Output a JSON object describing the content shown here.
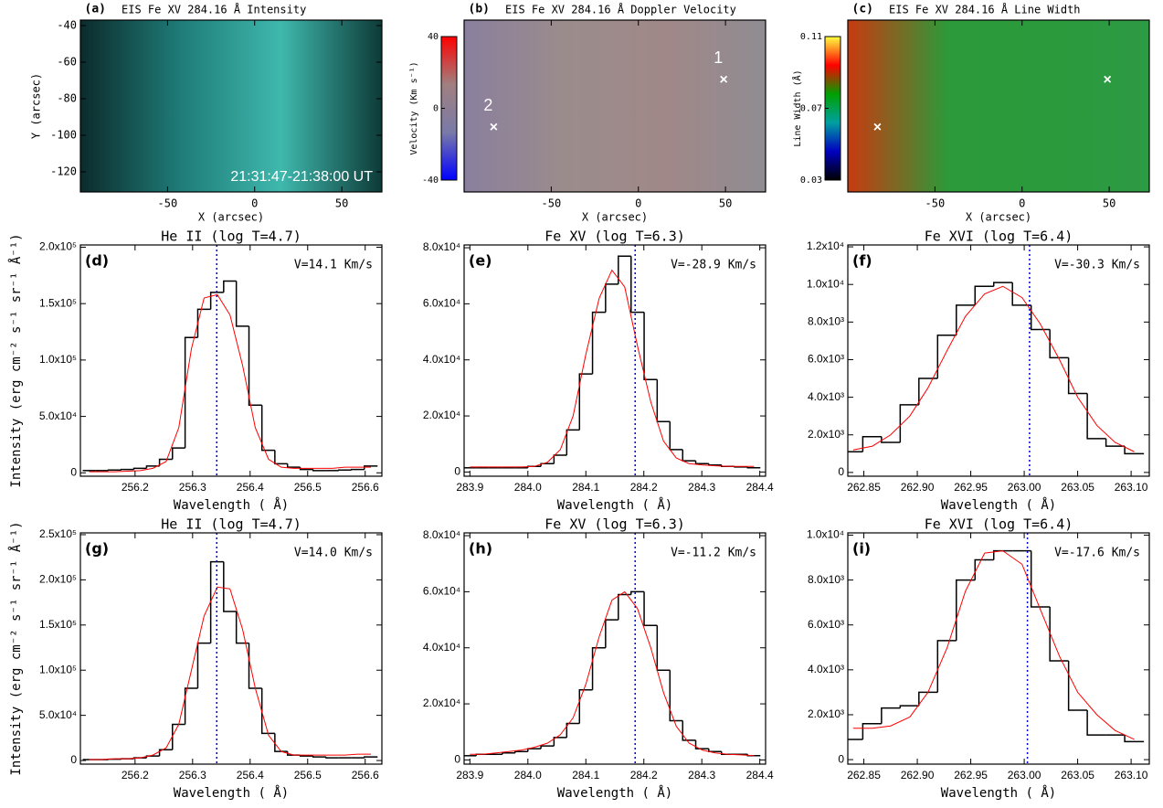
{
  "chart_data": [
    {
      "type": "image",
      "panel_label": "(a)",
      "title": "EIS Fe XV 284.16  Å  Intensity",
      "xlabel": "X (arcsec)",
      "ylabel": "Y (arcsec)",
      "xlim": [
        -100,
        73
      ],
      "xticks": [
        -50,
        0,
        50
      ],
      "ylim": [
        -131,
        -37
      ],
      "yticks": [
        -40,
        -60,
        -80,
        -100,
        -120
      ],
      "annotation": "21:31:47-21:38:00 UT",
      "colors": [
        "#0b2b2b",
        "#1f7c78",
        "#3fb8ad",
        "#0e3a38"
      ]
    },
    {
      "type": "image",
      "panel_label": "(b)",
      "title": "EIS Fe XV 284.16  Å  Doppler Velocity",
      "xlabel": "X (arcsec)",
      "xlim": [
        -100,
        73
      ],
      "xticks": [
        -50,
        0,
        50
      ],
      "ylim": [
        -131,
        -37
      ],
      "colors": [
        "#8a7f9e",
        "#9b8c8c",
        "#a08888",
        "#8f8c92"
      ],
      "colorbar": {
        "label": "Velocity (Km s⁻¹)",
        "lim": [
          -40,
          40
        ],
        "ticks": [
          -40,
          0,
          40
        ],
        "colors": [
          "#0000ff",
          "#7a7aa8",
          "#a08080",
          "#ff0000"
        ]
      },
      "markers": [
        {
          "label": "1",
          "x": 49,
          "y": -70
        },
        {
          "label": "2",
          "x": -83,
          "y": -96
        }
      ]
    },
    {
      "type": "image",
      "panel_label": "(c)",
      "title": "EIS Fe XV 284.16  Å  Line Width",
      "xlabel": "X (arcsec)",
      "xlim": [
        -100,
        73
      ],
      "xticks": [
        -50,
        0,
        50
      ],
      "ylim": [
        -131,
        -37
      ],
      "colors": [
        "#c83a10",
        "#2c9a3a",
        "#2a9a3c",
        "#2d9a44"
      ],
      "colorbar": {
        "label": "Line Width (Å)",
        "lim": [
          0.03,
          0.11
        ],
        "ticks": [
          0.03,
          0.07,
          0.11
        ],
        "colors": [
          "#000000",
          "#0000c0",
          "#00a0a0",
          "#00a000",
          "#ff0000",
          "#ffff40"
        ]
      },
      "markers": [
        {
          "x": 49,
          "y": -70
        },
        {
          "x": -83,
          "y": -96
        }
      ]
    },
    {
      "type": "step",
      "panel_label": "(d)",
      "title": "He II (log T=4.7)",
      "annotation": "V=14.1 Km/s",
      "xlabel": "Wavelength ( Å)",
      "ylabel": "Intensity (erg cm⁻² s⁻¹ sr⁻¹ Å⁻¹)",
      "xlim": [
        256.105,
        256.629
      ],
      "xticks": [
        256.2,
        256.3,
        256.4,
        256.5,
        256.6
      ],
      "ylim": [
        -3000,
        202000
      ],
      "yticks": [
        0,
        {
          "value": 50000,
          "label": "5.0x10⁴"
        },
        {
          "value": 100000,
          "label": "1.0x10⁵"
        },
        {
          "value": 150000,
          "label": "1.5x10⁵"
        },
        {
          "value": 200000,
          "label": "2.0x10⁵"
        }
      ],
      "reference_x": 256.342,
      "reference_color": "#0000dd",
      "x": [
        256.12,
        256.142,
        256.165,
        256.187,
        256.209,
        256.231,
        256.254,
        256.276,
        256.298,
        256.32,
        256.343,
        256.365,
        256.387,
        256.409,
        256.432,
        256.454,
        256.476,
        256.498,
        256.521,
        256.543,
        256.565,
        256.587,
        256.61
      ],
      "series": [
        {
          "style": "step",
          "color": "#000000",
          "values": [
            2000,
            2000,
            2500,
            3000,
            4000,
            6000,
            12000,
            22000,
            120000,
            145000,
            160000,
            170000,
            130000,
            60000,
            20000,
            8000,
            5000,
            3000,
            2000,
            2000,
            2500,
            3000,
            6000
          ]
        },
        {
          "style": "line",
          "color": "#ff0000",
          "values": [
            1000,
            1000,
            1000,
            1500,
            2000,
            4000,
            10000,
            40000,
            110000,
            155000,
            158000,
            140000,
            95000,
            40000,
            12000,
            5000,
            4000,
            4000,
            4000,
            4000,
            5000,
            5000,
            5000
          ]
        }
      ]
    },
    {
      "type": "step",
      "panel_label": "(e)",
      "title": "Fe XV (log T=6.3)",
      "annotation": "V=-28.9 Km/s",
      "xlabel": "Wavelength ( Å)",
      "xlim": [
        283.89,
        284.41
      ],
      "xticks": [
        283.9,
        {
          "value": 284,
          "label": "284.0"
        },
        284.1,
        284.2,
        284.3,
        284.4
      ],
      "ylim": [
        -1500,
        81000
      ],
      "yticks": [
        0,
        {
          "value": 20000,
          "label": "2.0x10⁴"
        },
        {
          "value": 40000,
          "label": "4.0x10⁴"
        },
        {
          "value": 60000,
          "label": "6.0x10⁴"
        },
        {
          "value": 80000,
          "label": "8.0x10⁴"
        }
      ],
      "reference_x": 284.185,
      "reference_color": "#0000dd",
      "x": [
        283.9,
        283.922,
        283.945,
        283.967,
        283.989,
        284.011,
        284.034,
        284.056,
        284.078,
        284.1,
        284.123,
        284.145,
        284.167,
        284.189,
        284.212,
        284.234,
        284.256,
        284.278,
        284.301,
        284.323,
        284.345,
        284.368,
        284.39
      ],
      "series": [
        {
          "style": "step",
          "color": "#000000",
          "values": [
            1500,
            1500,
            1500,
            1500,
            1500,
            2000,
            3000,
            6000,
            15000,
            35000,
            57000,
            67000,
            77000,
            57000,
            33000,
            18000,
            8000,
            4000,
            3000,
            2500,
            2000,
            1800,
            1500
          ]
        },
        {
          "style": "line",
          "color": "#ff0000",
          "values": [
            1800,
            1800,
            1800,
            1800,
            1800,
            2000,
            3500,
            8000,
            20000,
            42000,
            62000,
            72000,
            66000,
            45000,
            25000,
            11000,
            5000,
            3000,
            2500,
            2200,
            2000,
            2000,
            2000
          ]
        }
      ]
    },
    {
      "type": "step",
      "panel_label": "(f)",
      "title": "Fe XVI (log T=6.4)",
      "annotation": "V=-30.3 Km/s",
      "xlabel": "Wavelength ( Å)",
      "xlim": [
        262.835,
        263.117
      ],
      "xticks": [
        262.85,
        {
          "value": 262.9,
          "label": "262.90"
        },
        262.95,
        {
          "value": 263,
          "label": "263.00"
        },
        263.05,
        {
          "value": 263.1,
          "label": "263.10"
        }
      ],
      "ylim": [
        -200,
        12100
      ],
      "yticks": [
        0,
        {
          "value": 2000,
          "label": "2.0x10³"
        },
        {
          "value": 4000,
          "label": "4.0x10³"
        },
        {
          "value": 6000,
          "label": "6.0x10³"
        },
        {
          "value": 8000,
          "label": "8.0x10³"
        },
        {
          "value": 10000,
          "label": "1.0x10⁴"
        },
        {
          "value": 12000,
          "label": "1.2x10⁴"
        }
      ],
      "reference_x": 263.005,
      "reference_color": "#0000dd",
      "x": [
        262.84,
        262.858,
        262.875,
        262.893,
        262.91,
        262.928,
        262.945,
        262.963,
        262.98,
        262.998,
        263.015,
        263.033,
        263.05,
        263.068,
        263.085,
        263.103
      ],
      "series": [
        {
          "style": "step",
          "color": "#000000",
          "values": [
            1100,
            1900,
            1600,
            3600,
            5000,
            7300,
            8900,
            9900,
            10100,
            8900,
            7600,
            6100,
            4200,
            1800,
            1400,
            1000
          ]
        },
        {
          "style": "line",
          "color": "#ff0000",
          "values": [
            1200,
            1400,
            2000,
            3000,
            4500,
            6500,
            8300,
            9500,
            9900,
            9300,
            7900,
            6000,
            4000,
            2500,
            1600,
            1100
          ]
        }
      ]
    },
    {
      "type": "step",
      "panel_label": "(g)",
      "title": "He II (log T=4.7)",
      "annotation": "V=14.0 Km/s",
      "xlabel": "Wavelength ( Å)",
      "ylabel": "Intensity (erg cm⁻² s⁻¹ sr⁻¹ Å⁻¹)",
      "xlim": [
        256.105,
        256.629
      ],
      "xticks": [
        256.2,
        256.3,
        256.4,
        256.5,
        256.6
      ],
      "ylim": [
        -4000,
        252000
      ],
      "yticks": [
        0,
        {
          "value": 50000,
          "label": "5.0x10⁴"
        },
        {
          "value": 100000,
          "label": "1.0x10⁵"
        },
        {
          "value": 150000,
          "label": "1.5x10⁵"
        },
        {
          "value": 200000,
          "label": "2.0x10⁵"
        },
        {
          "value": 250000,
          "label": "2.5x10⁵"
        }
      ],
      "reference_x": 256.342,
      "reference_color": "#0000dd",
      "x": [
        256.12,
        256.142,
        256.165,
        256.187,
        256.209,
        256.231,
        256.254,
        256.276,
        256.298,
        256.32,
        256.343,
        256.365,
        256.387,
        256.409,
        256.432,
        256.454,
        256.476,
        256.498,
        256.521,
        256.543,
        256.565,
        256.587,
        256.61
      ],
      "series": [
        {
          "style": "step",
          "color": "#000000",
          "values": [
            1000,
            1000,
            1500,
            2000,
            3000,
            5000,
            12000,
            40000,
            80000,
            130000,
            220000,
            165000,
            130000,
            80000,
            30000,
            10000,
            6000,
            5000,
            4000,
            3000,
            3000,
            3000,
            4000
          ]
        },
        {
          "style": "line",
          "color": "#ff0000",
          "values": [
            1000,
            1000,
            2000,
            2000,
            3000,
            6000,
            14000,
            40000,
            100000,
            160000,
            192000,
            190000,
            145000,
            80000,
            28000,
            10000,
            6000,
            6000,
            6000,
            6000,
            6000,
            7000,
            7000
          ]
        }
      ]
    },
    {
      "type": "step",
      "panel_label": "(h)",
      "title": "Fe XV (log T=6.3)",
      "annotation": "V=-11.2 Km/s",
      "xlabel": "Wavelength ( Å)",
      "xlim": [
        283.89,
        284.41
      ],
      "xticks": [
        283.9,
        {
          "value": 284,
          "label": "284.0"
        },
        284.1,
        284.2,
        284.3,
        284.4
      ],
      "ylim": [
        -1500,
        81000
      ],
      "yticks": [
        0,
        {
          "value": 20000,
          "label": "2.0x10⁴"
        },
        {
          "value": 40000,
          "label": "4.0x10⁴"
        },
        {
          "value": 60000,
          "label": "6.0x10⁴"
        },
        {
          "value": 80000,
          "label": "8.0x10⁴"
        }
      ],
      "reference_x": 284.185,
      "reference_color": "#0000dd",
      "x": [
        283.9,
        283.922,
        283.945,
        283.967,
        283.989,
        284.011,
        284.034,
        284.056,
        284.078,
        284.1,
        284.123,
        284.145,
        284.167,
        284.189,
        284.212,
        284.234,
        284.256,
        284.278,
        284.301,
        284.323,
        284.345,
        284.368,
        284.39
      ],
      "series": [
        {
          "style": "step",
          "color": "#000000",
          "values": [
            1500,
            2000,
            2000,
            2500,
            3000,
            4000,
            5000,
            8000,
            13000,
            25000,
            40000,
            50000,
            59000,
            60000,
            48000,
            32000,
            14000,
            7000,
            4000,
            3000,
            2000,
            2000,
            1500
          ]
        },
        {
          "style": "line",
          "color": "#ff0000",
          "values": [
            2000,
            2000,
            2500,
            3000,
            3500,
            4500,
            6000,
            9000,
            15000,
            27000,
            44000,
            57000,
            60000,
            54000,
            40000,
            24000,
            12000,
            6000,
            3500,
            2500,
            2000,
            1800,
            1500
          ]
        }
      ]
    },
    {
      "type": "step",
      "panel_label": "(i)",
      "title": "Fe XVI (log T=6.4)",
      "annotation": "V=-17.6 Km/s",
      "xlabel": "Wavelength ( Å)",
      "xlim": [
        262.835,
        263.117
      ],
      "xticks": [
        262.85,
        {
          "value": 262.9,
          "label": "262.90"
        },
        262.95,
        {
          "value": 263,
          "label": "263.00"
        },
        263.05,
        {
          "value": 263.1,
          "label": "263.10"
        }
      ],
      "ylim": [
        -200,
        10100
      ],
      "yticks": [
        0,
        {
          "value": 2000,
          "label": "2.0x10³"
        },
        {
          "value": 4000,
          "label": "4.0x10³"
        },
        {
          "value": 6000,
          "label": "6.0x10³"
        },
        {
          "value": 8000,
          "label": "8.0x10³"
        },
        {
          "value": 10000,
          "label": "1.0x10⁴"
        }
      ],
      "reference_x": 263.003,
      "reference_color": "#0000dd",
      "x": [
        262.84,
        262.858,
        262.875,
        262.893,
        262.91,
        262.928,
        262.945,
        262.963,
        262.98,
        262.998,
        263.015,
        263.033,
        263.05,
        263.068,
        263.085,
        263.103
      ],
      "series": [
        {
          "style": "step",
          "color": "#000000",
          "values": [
            900,
            1600,
            2300,
            2400,
            3000,
            5300,
            8000,
            8900,
            9300,
            9300,
            6800,
            4400,
            2200,
            1100,
            1100,
            800
          ]
        },
        {
          "style": "line",
          "color": "#ff0000",
          "values": [
            1400,
            1400,
            1500,
            1900,
            3000,
            5000,
            7500,
            9200,
            9300,
            8700,
            6700,
            4600,
            3000,
            2000,
            1300,
            900
          ]
        }
      ]
    }
  ]
}
